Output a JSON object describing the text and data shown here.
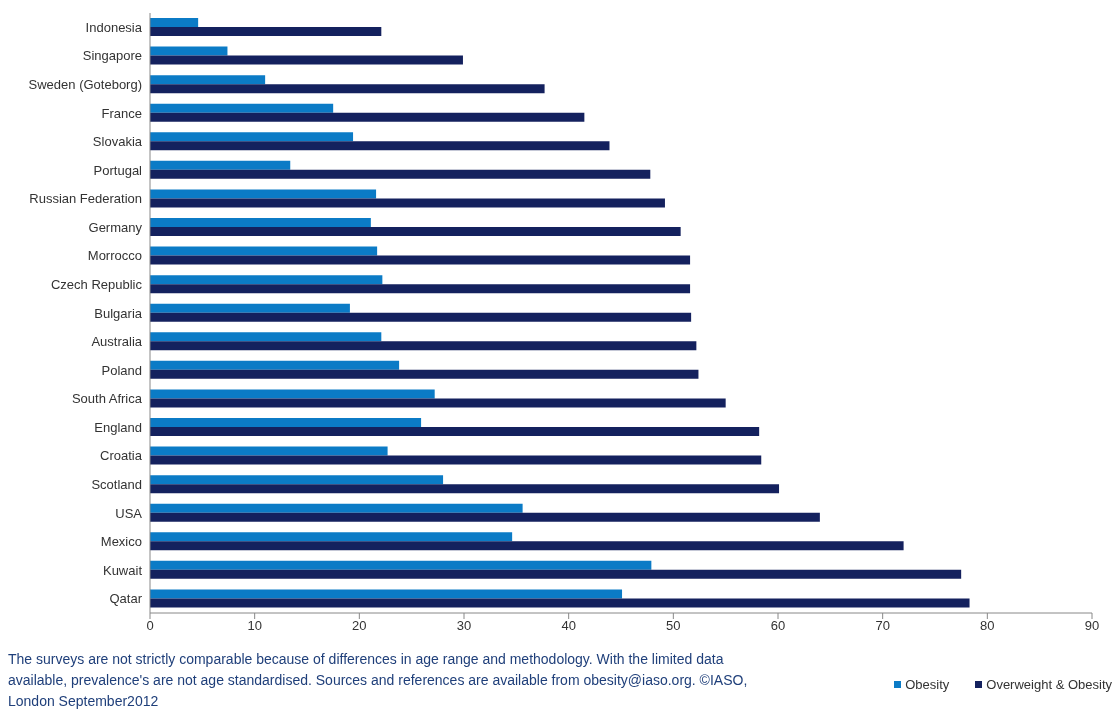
{
  "chart_data": {
    "type": "bar",
    "orientation": "horizontal",
    "categories": [
      "Indonesia",
      "Singapore",
      "Sweden (Goteborg)",
      "France",
      "Slovakia",
      "Portugal",
      "Russian Federation",
      "Germany",
      "Morrocco",
      "Czech Republic",
      "Bulgaria",
      "Australia",
      "Poland",
      "South Africa",
      "England",
      "Croatia",
      "Scotland",
      "USA",
      "Mexico",
      "Kuwait",
      "Qatar"
    ],
    "series": [
      {
        "name": "Obesity",
        "color": "#0b7bc6",
        "values": [
          4.6,
          7.4,
          11.0,
          17.5,
          19.4,
          13.4,
          21.6,
          21.1,
          21.7,
          22.2,
          19.1,
          22.1,
          23.8,
          27.2,
          25.9,
          22.7,
          28.0,
          35.6,
          34.6,
          47.9,
          45.1
        ]
      },
      {
        "name": "Overweight & Obesity",
        "color": "#14215e",
        "values": [
          22.1,
          29.9,
          37.7,
          41.5,
          43.9,
          47.8,
          49.2,
          50.7,
          51.6,
          51.6,
          51.7,
          52.2,
          52.4,
          55.0,
          58.2,
          58.4,
          60.1,
          64.0,
          72.0,
          77.5,
          78.3
        ]
      }
    ],
    "xlim": [
      0,
      90
    ],
    "xticks": [
      0,
      10,
      20,
      30,
      40,
      50,
      60,
      70,
      80,
      90
    ],
    "grid": false,
    "legend": "bottom right",
    "annotations": [
      "The surveys are not strictly comparable because of differences in age range and methodology.   With the limited data available, prevalence's are not age standardised.  Sources and references are available from obesity@iaso.org.   ©IASO, London  September2012"
    ]
  }
}
